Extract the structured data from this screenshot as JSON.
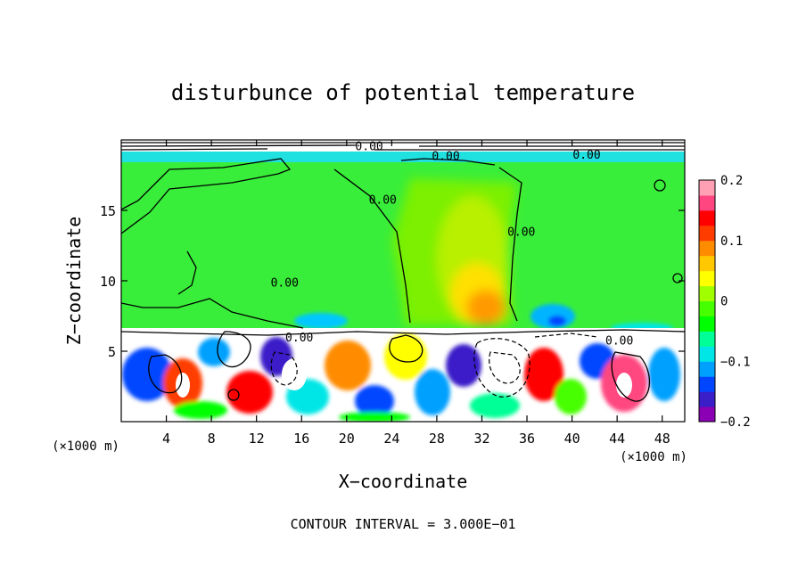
{
  "chart_data": {
    "type": "heatmap",
    "title": "disturbunce of potential temperature",
    "xlabel": "X−coordinate",
    "ylabel": "Z−coordinate",
    "x_unit_left": "(×1000 m)",
    "x_unit_right": "(×1000 m)",
    "footer": "CONTOUR INTERVAL = 3.000E−01",
    "xlim": [
      0,
      50
    ],
    "ylim": [
      0,
      20
    ],
    "x_ticks": [
      4,
      8,
      12,
      16,
      20,
      24,
      28,
      32,
      36,
      40,
      44,
      48
    ],
    "y_ticks": [
      5,
      10,
      15
    ],
    "colorbar": {
      "min": -0.2,
      "max": 0.2,
      "ticks": [
        {
          "value": 0.2,
          "label": "0.2"
        },
        {
          "value": 0.1,
          "label": "0.1"
        },
        {
          "value": 0,
          "label": "0"
        },
        {
          "value": -0.1,
          "label": "−0.1"
        },
        {
          "value": -0.2,
          "label": "−0.2"
        }
      ],
      "colors": [
        "#8b00b4",
        "#3a1ec8",
        "#0046ff",
        "#00a0ff",
        "#00e6e6",
        "#00ff96",
        "#00ff00",
        "#46ff00",
        "#a0ff00",
        "#ffff00",
        "#ffc800",
        "#ff8c00",
        "#ff3c00",
        "#ff0000",
        "#ff4680",
        "#ffa0b4"
      ]
    },
    "contour_labels": [
      {
        "text": "0.00",
        "x": 14.5,
        "y": 9.9
      },
      {
        "text": "0.00",
        "x": 23.2,
        "y": 15.8
      },
      {
        "text": "0.00",
        "x": 28.8,
        "y": 18.9
      },
      {
        "text": "0.00",
        "x": 35.5,
        "y": 13.5
      },
      {
        "text": "0.00",
        "x": 22.0,
        "y": 19.6
      },
      {
        "text": "0.00",
        "x": 41.3,
        "y": 19.0
      },
      {
        "text": "0.00",
        "x": 15.8,
        "y": 6.0
      },
      {
        "text": "0.00",
        "x": 44.2,
        "y": 5.8
      }
    ]
  }
}
